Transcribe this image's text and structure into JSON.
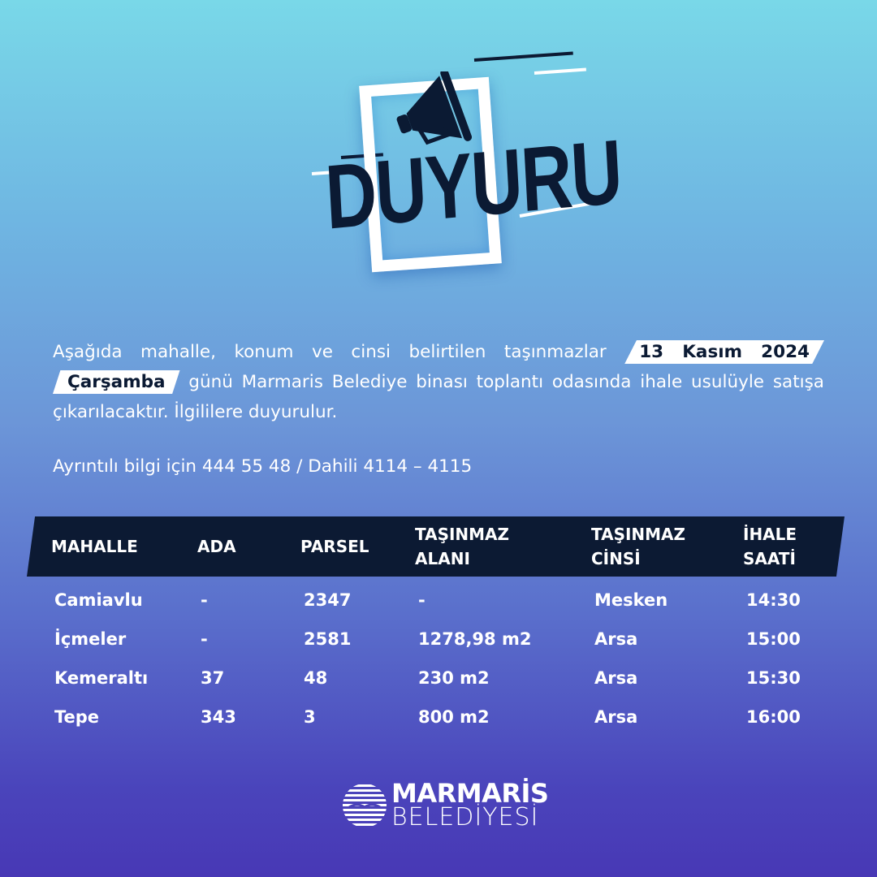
{
  "header": {
    "title": "DUYURU",
    "icon": "megaphone-icon"
  },
  "announcement": {
    "text_before": "Aşağıda mahalle, konum ve cinsi belirtilen taşınmazlar",
    "date_highlight": "13 Kasım 2024",
    "day_highlight": "Çarşamba",
    "text_after": "günü Marmaris Belediye binası toplantı odasında ihale usulüyle satışa çıkarılacaktır. İlgililere duyurulur."
  },
  "contact": "Ayrıntılı bilgi için 444 55 48 / Dahili 4114 – 4115",
  "table": {
    "headers": [
      "MAHALLE",
      "ADA",
      "PARSEL",
      "TAŞINMAZ ALANI",
      "TAŞINMAZ CİNSİ",
      "İHALE SAATİ"
    ],
    "header_lines": [
      [
        "MAHALLE"
      ],
      [
        "ADA"
      ],
      [
        "PARSEL"
      ],
      [
        "TAŞINMAZ",
        "ALANI"
      ],
      [
        "TAŞINMAZ",
        "CİNSİ"
      ],
      [
        "İHALE",
        "SAATİ"
      ]
    ],
    "rows": [
      [
        "Camiavlu",
        "-",
        "2347",
        "-",
        "Mesken",
        "14:30"
      ],
      [
        "İçmeler",
        "-",
        "2581",
        "1278,98 m2",
        "Arsa",
        "15:00"
      ],
      [
        "Kemeraltı",
        "37",
        "48",
        "230 m2",
        "Arsa",
        "15:30"
      ],
      [
        "Tepe",
        "343",
        "3",
        "800 m2",
        "Arsa",
        "16:00"
      ]
    ]
  },
  "footer": {
    "logo_line1": "MARMARİS",
    "logo_line2": "BELEDİYESİ"
  },
  "colors": {
    "navy": "#0c1a33",
    "top": "#79d8e8",
    "bottom": "#4838b5"
  }
}
